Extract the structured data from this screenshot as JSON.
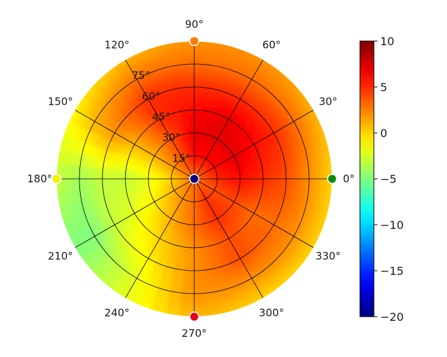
{
  "chart_data": {
    "type": "heatmap",
    "projection": "polar",
    "title": "",
    "angle_unit": "deg",
    "angle_ticks": [
      "0°",
      "30°",
      "60°",
      "90°",
      "120°",
      "150°",
      "180°",
      "210°",
      "240°",
      "270°",
      "300°",
      "330°"
    ],
    "angle_tick_values": [
      0,
      30,
      60,
      90,
      120,
      150,
      180,
      210,
      240,
      270,
      300,
      330
    ],
    "radial_ticks": [
      "15°",
      "30°",
      "45°",
      "60°",
      "75°"
    ],
    "radial_tick_values": [
      15,
      30,
      45,
      60,
      75
    ],
    "radial_range": [
      0,
      90
    ],
    "grid": true,
    "colormap": "jet",
    "colorbar": {
      "ticks": [
        "10",
        "5",
        "0",
        "−5",
        "−10",
        "−15",
        "−20"
      ],
      "tick_values": [
        10,
        5,
        0,
        -5,
        -10,
        -15,
        -20
      ],
      "range": [
        -20,
        10
      ],
      "placement": "right"
    },
    "surface_samples": {
      "angles_deg": [
        0,
        30,
        60,
        90,
        120,
        150,
        180,
        210,
        240,
        270,
        300,
        330
      ],
      "radii_deg": [
        0,
        15,
        30,
        45,
        60,
        75,
        90
      ],
      "values": [
        [
          3,
          5,
          6,
          5,
          4,
          2,
          0
        ],
        [
          3,
          6,
          7,
          6,
          5,
          3,
          1
        ],
        [
          3,
          6,
          7,
          7,
          5,
          3,
          2
        ],
        [
          3,
          6,
          7,
          6,
          5,
          3,
          2
        ],
        [
          3,
          4,
          4,
          5,
          5,
          3,
          1
        ],
        [
          3,
          2,
          1,
          1,
          2,
          1,
          -1
        ],
        [
          3,
          0,
          -2,
          -3,
          -3,
          -4,
          -3
        ],
        [
          3,
          1,
          -1,
          -2,
          -3,
          -5,
          -5
        ],
        [
          3,
          2,
          1,
          0,
          -1,
          -2,
          -2
        ],
        [
          3,
          3,
          3,
          2,
          2,
          2,
          1
        ],
        [
          3,
          5,
          5,
          4,
          4,
          2,
          0
        ],
        [
          3,
          4,
          4,
          3,
          3,
          2,
          0
        ]
      ]
    },
    "markers": [
      {
        "angle": 0,
        "radius": 90,
        "color": "#128a12"
      },
      {
        "angle": 90,
        "radius": 90,
        "color": "#ff7a00"
      },
      {
        "angle": 180,
        "radius": 90,
        "color": "#f4ef00"
      },
      {
        "angle": 270,
        "radius": 90,
        "color": "#e6001a"
      },
      {
        "angle": 0,
        "radius": 0,
        "color": "#0a0080"
      }
    ]
  }
}
